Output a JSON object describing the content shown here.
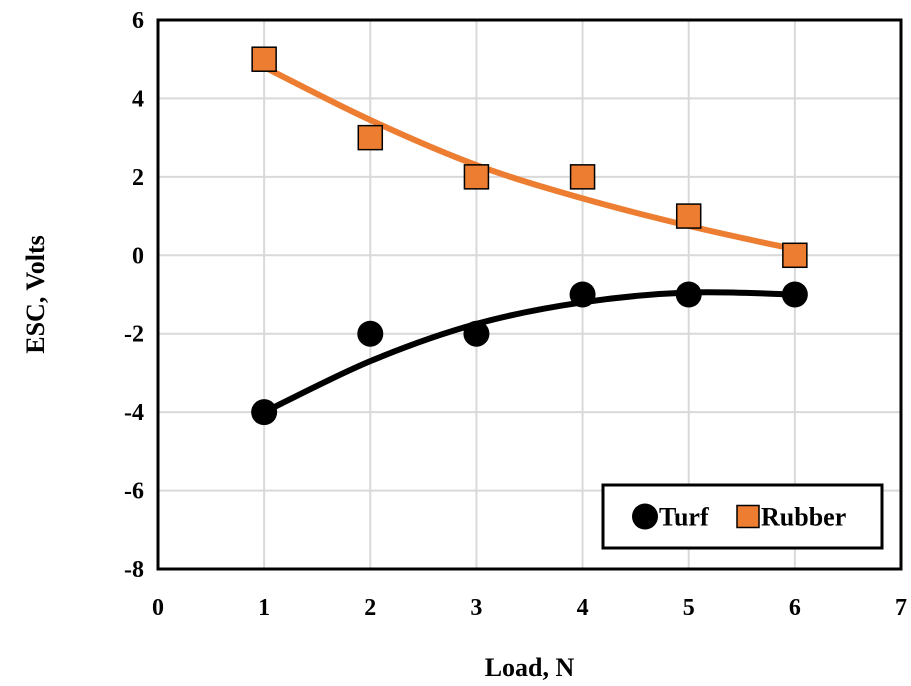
{
  "chart_data": {
    "type": "scatter",
    "title": "",
    "xlabel": "Load, N",
    "ylabel": "ESC, Volts",
    "xlim": [
      0,
      7
    ],
    "ylim": [
      -8,
      6
    ],
    "xticks": [
      0,
      1,
      2,
      3,
      4,
      5,
      6,
      7
    ],
    "yticks": [
      -8,
      -6,
      -4,
      -2,
      0,
      2,
      4,
      6
    ],
    "grid": true,
    "legend_position": "bottom-right",
    "series": [
      {
        "name": "Turf",
        "marker": "circle",
        "color": "#000000",
        "x": [
          1,
          2,
          3,
          4,
          5,
          6
        ],
        "y": [
          -4,
          -2,
          -2,
          -1,
          -1,
          -1
        ],
        "trend": [
          -4.0,
          -2.7,
          -1.75,
          -1.2,
          -0.95,
          -1.0
        ]
      },
      {
        "name": "Rubber",
        "marker": "square",
        "color": "#ED7D31",
        "x": [
          1,
          2,
          3,
          4,
          5,
          6
        ],
        "y": [
          5,
          3,
          2,
          2,
          1,
          0
        ],
        "trend": [
          4.8,
          3.45,
          2.3,
          1.45,
          0.75,
          0.15
        ]
      }
    ]
  }
}
